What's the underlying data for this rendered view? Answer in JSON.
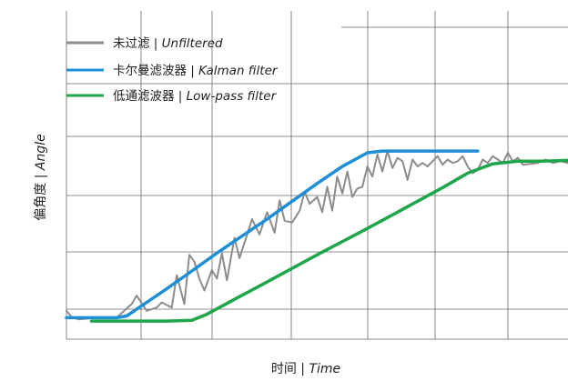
{
  "chart_data": {
    "type": "line",
    "title": "",
    "xlabel": {
      "zh": "时间",
      "sep": " | ",
      "en": "Time"
    },
    "ylabel": {
      "zh": "偏角度",
      "sep": " | ",
      "en": "Angle"
    },
    "xlim": [
      0,
      10
    ],
    "ylim": [
      0,
      10
    ],
    "grid": true,
    "legend_position": "top-left",
    "series": [
      {
        "name": {
          "zh": "未过滤",
          "sep": " | ",
          "en": "Unfiltered"
        },
        "color": "#8c8c8c",
        "x": [
          0.0,
          0.1,
          0.25,
          0.6,
          1.0,
          1.3,
          1.4,
          1.6,
          1.8,
          1.9,
          2.1,
          2.2,
          2.35,
          2.45,
          2.55,
          2.65,
          2.75,
          2.9,
          3.0,
          3.1,
          3.2,
          3.35,
          3.45,
          3.55,
          3.7,
          3.85,
          4.0,
          4.15,
          4.25,
          4.35,
          4.5,
          4.65,
          4.75,
          4.85,
          5.0,
          5.1,
          5.2,
          5.3,
          5.4,
          5.5,
          5.6,
          5.7,
          5.8,
          5.9,
          6.0,
          6.1,
          6.2,
          6.3,
          6.4,
          6.5,
          6.6,
          6.7,
          6.8,
          6.9,
          7.0,
          7.1,
          7.2,
          7.3,
          7.4,
          7.5,
          7.6,
          7.7,
          7.8,
          7.9,
          8.0,
          8.1,
          8.2,
          8.3,
          8.4,
          8.5,
          8.6,
          8.7,
          8.8,
          8.9,
          9.0,
          9.1,
          9.25,
          9.4,
          9.55,
          9.7,
          9.85,
          10.0
        ],
        "y": [
          0.7,
          0.35,
          0.2,
          0.3,
          0.3,
          1.1,
          1.6,
          0.7,
          0.9,
          1.2,
          0.9,
          2.8,
          1.1,
          4.0,
          3.6,
          2.6,
          1.9,
          3.1,
          2.6,
          4.1,
          2.5,
          5.0,
          3.8,
          4.7,
          6.1,
          5.2,
          6.5,
          5.3,
          7.2,
          6.0,
          5.9,
          6.6,
          7.7,
          7.0,
          7.4,
          6.5,
          8.0,
          6.6,
          8.6,
          7.6,
          8.9,
          7.4,
          7.9,
          8.0,
          9.2,
          8.6,
          9.9,
          8.9,
          10.1,
          9.1,
          9.7,
          9.5,
          8.4,
          9.6,
          9.2,
          9.4,
          9.2,
          9.5,
          9.8,
          9.3,
          9.6,
          9.4,
          9.5,
          9.8,
          9.2,
          8.8,
          9.0,
          9.6,
          9.4,
          9.8,
          9.6,
          9.4,
          10.0,
          9.5,
          9.7,
          9.3,
          9.35,
          9.4,
          9.6,
          9.4,
          9.5,
          9.4
        ]
      },
      {
        "name": {
          "zh": "卡尔曼滤波器",
          "sep": " | ",
          "en": "Kalman filter"
        },
        "color": "#1e8fd5",
        "x": [
          0.0,
          1.0,
          1.2,
          1.5,
          2.0,
          2.5,
          3.0,
          3.5,
          4.0,
          4.5,
          5.0,
          5.5,
          6.0,
          6.3,
          7.0,
          8.0,
          8.2
        ],
        "y": [
          0.3,
          0.3,
          0.4,
          1.0,
          2.0,
          3.05,
          4.1,
          5.1,
          6.1,
          7.15,
          8.2,
          9.2,
          10.0,
          10.1,
          10.1,
          10.1,
          10.1
        ]
      },
      {
        "name": {
          "zh": "低通滤波器",
          "sep": " | ",
          "en": "Low-pass filter"
        },
        "color": "#1fa64b",
        "x": [
          0.5,
          1.0,
          2.0,
          2.5,
          2.8,
          3.3,
          4.0,
          5.0,
          6.0,
          6.5,
          7.0,
          7.5,
          8.0,
          8.5,
          9.0,
          9.5,
          10.0
        ],
        "y": [
          0.1,
          0.1,
          0.1,
          0.15,
          0.5,
          1.3,
          2.4,
          4.0,
          5.55,
          6.35,
          7.15,
          7.95,
          8.8,
          9.35,
          9.5,
          9.5,
          9.55
        ]
      }
    ]
  }
}
